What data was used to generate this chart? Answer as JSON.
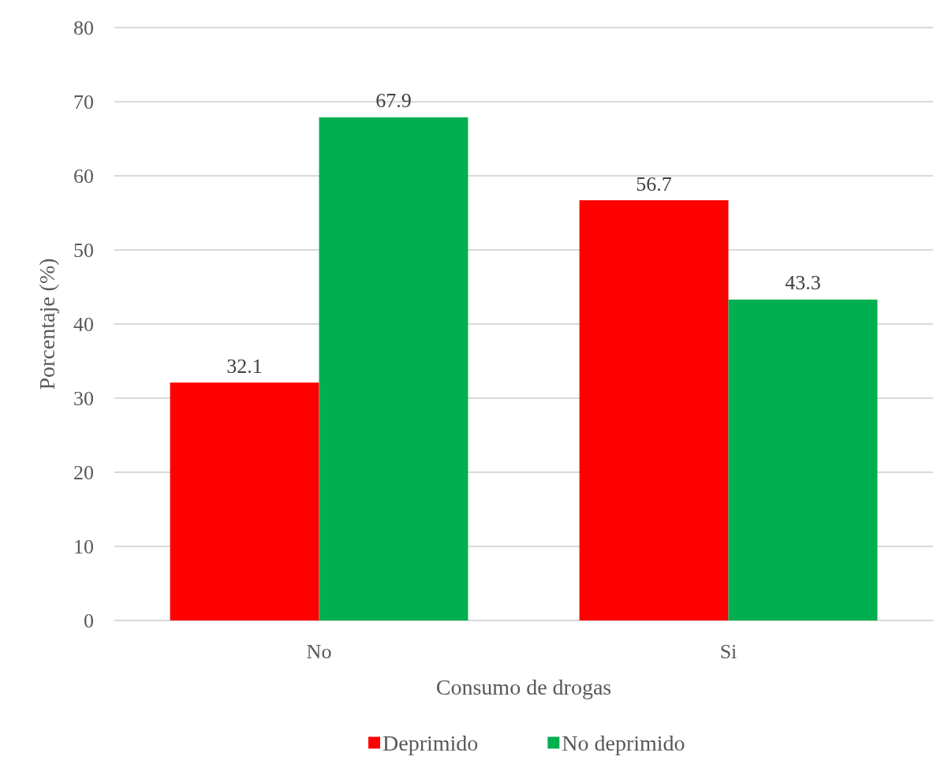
{
  "chart_data": {
    "type": "bar",
    "xlabel": "Consumo de drogas",
    "ylabel": "Porcentaje (%)",
    "categories": [
      "No",
      "Si"
    ],
    "series": [
      {
        "name": "Deprimido",
        "color": "#ff0000",
        "values": [
          32.1,
          56.7
        ]
      },
      {
        "name": "No deprimido",
        "color": "#00b050",
        "values": [
          67.9,
          43.3
        ]
      }
    ],
    "ylim": [
      0,
      80
    ],
    "yticks": [
      0,
      10,
      20,
      30,
      40,
      50,
      60,
      70,
      80
    ],
    "grid": "y",
    "legend": "bottom",
    "data_labels": true
  }
}
